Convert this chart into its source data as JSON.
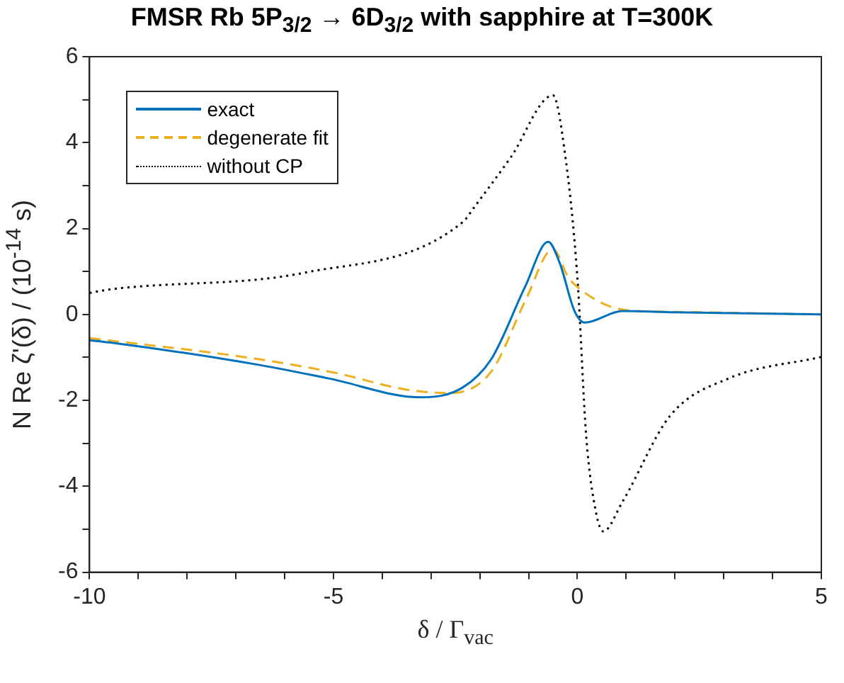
{
  "chart_data": {
    "type": "line",
    "title": "FMSR Rb 5P$_{3/2}$ → 6D$_{3/2}$ with sapphire at T=300K",
    "xlabel": "δ / Γ$_{vac}$",
    "ylabel": "N Re ζ'(δ) / (10$^{-14}$ s)",
    "xlim": [
      -10,
      5
    ],
    "ylim": [
      -6,
      6
    ],
    "xticks": [
      -10,
      {
        "value": -9,
        "label": null
      },
      {
        "value": -8,
        "label": null
      },
      {
        "value": -7,
        "label": null
      },
      {
        "value": -6,
        "label": null
      },
      -5,
      {
        "value": -4,
        "label": null
      },
      {
        "value": -3,
        "label": null
      },
      {
        "value": -2,
        "label": null
      },
      {
        "value": -1,
        "label": null
      },
      0,
      {
        "value": 1,
        "label": null
      },
      {
        "value": 2,
        "label": null
      },
      {
        "value": 3,
        "label": null
      },
      {
        "value": 4,
        "label": null
      },
      5
    ],
    "yticks": [
      -6,
      {
        "value": -5,
        "label": null
      },
      -4,
      {
        "value": -3,
        "label": null
      },
      -2,
      {
        "value": -1,
        "label": null
      },
      0,
      {
        "value": 1,
        "label": null
      },
      2,
      {
        "value": 3,
        "label": null
      },
      4,
      {
        "value": 5,
        "label": null
      },
      6
    ],
    "grid": false,
    "legend": "top left",
    "marker": "none",
    "series": [
      {
        "name": "exact",
        "color": "#0072bd",
        "line_style": "solid",
        "x": [
          -10,
          -9.6,
          -6.6,
          -5.1,
          -3.2,
          -2.35,
          -1.76,
          -1.07,
          -0.6,
          -0.36,
          -0.06,
          0.15,
          0.92,
          2,
          5
        ],
        "values": [
          -0.6,
          -0.65,
          -1.16,
          -1.49,
          -1.93,
          -1.7,
          -1.03,
          0.65,
          1.69,
          1.19,
          0.08,
          -0.19,
          0.08,
          0.05,
          0
        ]
      },
      {
        "name": "degenerate fit",
        "color": "#edb120",
        "line_style": "dashed",
        "x": [
          -10,
          -6.6,
          -5,
          -3.5,
          -2.6,
          -1.76,
          -1.07,
          -0.5,
          -0.18,
          0,
          0.53,
          1,
          2,
          5
        ],
        "values": [
          -0.55,
          -1.03,
          -1.35,
          -1.75,
          -1.83,
          -1.32,
          0.31,
          1.52,
          0.85,
          0.64,
          0.25,
          0.1,
          0.06,
          0
        ]
      },
      {
        "name": "without CP",
        "color": "#000000",
        "line_style": "dotted",
        "x": [
          -10,
          -9.6,
          -5.6,
          -2.35,
          -2.1,
          -1.37,
          -0.5,
          -0.27,
          0,
          0.18,
          0.38,
          0.53,
          0.92,
          1.9,
          3.1,
          5
        ],
        "values": [
          0.5,
          0.58,
          0.97,
          2.15,
          2.52,
          3.65,
          5.1,
          3.87,
          0.85,
          -2.83,
          -4.6,
          -5.05,
          -4.37,
          -2.36,
          -1.49,
          -0.99
        ]
      }
    ]
  }
}
